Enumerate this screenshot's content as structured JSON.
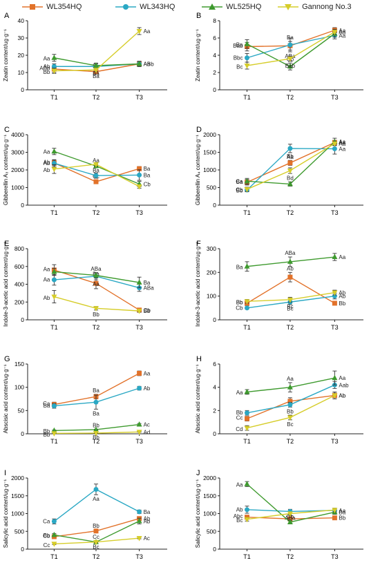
{
  "legend": [
    {
      "name": "WL354HQ",
      "color": "#E2722A",
      "marker": "square"
    },
    {
      "name": "WL343HQ",
      "color": "#2AA8C4",
      "marker": "circle"
    },
    {
      "name": "WL525HQ",
      "color": "#3E9A2E",
      "marker": "triangle"
    },
    {
      "name": "Gannong No.3",
      "color": "#D6CD2A",
      "marker": "triangle-down"
    }
  ],
  "chart_data": [
    {
      "panel": "A",
      "type": "line",
      "ylabel": "Zeatin content/ug·g⁻¹",
      "categories": [
        "T1",
        "T2",
        "T3"
      ],
      "ylim": [
        0,
        40
      ],
      "yticks": [
        0,
        10,
        20,
        30,
        40
      ],
      "series": [
        {
          "name": "WL354HQ",
          "values": [
            12,
            10.5,
            15
          ],
          "errors": [
            2,
            1,
            1.5
          ],
          "labels": [
            "ABb",
            "Ba",
            "ABb"
          ]
        },
        {
          "name": "WL343HQ",
          "values": [
            13.5,
            13.5,
            15
          ],
          "errors": [
            1.5,
            1.5,
            1.5
          ],
          "labels": [
            "Ab",
            "Ba",
            "Ab"
          ]
        },
        {
          "name": "WL525HQ",
          "values": [
            18.5,
            14,
            15
          ],
          "errors": [
            2,
            1.5,
            1.5
          ],
          "labels": [
            "Aa",
            "",
            ""
          ]
        },
        {
          "name": "Gannong No.3",
          "values": [
            11,
            11.5,
            34
          ],
          "errors": [
            1.5,
            1,
            2
          ],
          "labels": [
            "Bb",
            "Ba",
            "Aa"
          ]
        }
      ]
    },
    {
      "panel": "B",
      "type": "line",
      "ylabel": "Zeatin content/ug·g⁻¹",
      "categories": [
        "T1",
        "T2",
        "T3"
      ],
      "ylim": [
        0,
        8
      ],
      "yticks": [
        0,
        2,
        4,
        6,
        8
      ],
      "series": [
        {
          "name": "WL354HQ",
          "values": [
            5.0,
            5.1,
            6.9
          ],
          "errors": [
            0.5,
            0.5,
            0.3
          ],
          "labels": [
            "Bab",
            "Ba",
            "Aa"
          ]
        },
        {
          "name": "WL343HQ",
          "values": [
            3.7,
            5.2,
            6.3
          ],
          "errors": [
            0.5,
            0.8,
            0.4
          ],
          "labels": [
            "Bbc",
            "ABa",
            "Aa"
          ]
        },
        {
          "name": "WL525HQ",
          "values": [
            5.3,
            2.7,
            6.5
          ],
          "errors": [
            0.5,
            0.4,
            0.4
          ],
          "labels": [
            "Ba",
            "Cb",
            ""
          ]
        },
        {
          "name": "Gannong No.3",
          "values": [
            2.8,
            3.6,
            6.7
          ],
          "errors": [
            0.4,
            0.3,
            0.3
          ],
          "labels": [
            "Bc",
            "Bab",
            "Aa"
          ]
        }
      ]
    },
    {
      "panel": "C",
      "type": "line",
      "ylabel": "Gibberellin A₃ content/ug·g⁻¹",
      "categories": [
        "T1",
        "T2",
        "T3"
      ],
      "ylim": [
        0,
        4000
      ],
      "yticks": [
        0,
        1000,
        2000,
        3000,
        4000
      ],
      "series": [
        {
          "name": "WL354HQ",
          "values": [
            2400,
            1330,
            2070
          ],
          "errors": [
            150,
            80,
            120
          ],
          "labels": [
            "Ab",
            "Cc",
            "Ba"
          ]
        },
        {
          "name": "WL343HQ",
          "values": [
            2380,
            1680,
            1710
          ],
          "errors": [
            200,
            150,
            300
          ],
          "labels": [
            "Ab",
            "",
            "Ba"
          ]
        },
        {
          "name": "WL525HQ",
          "values": [
            3050,
            2220,
            1200
          ],
          "errors": [
            180,
            100,
            150
          ],
          "labels": [
            "Aa",
            "Aa",
            "Cb"
          ]
        },
        {
          "name": "Gannong No.3",
          "values": [
            2050,
            2320,
            1060
          ],
          "errors": [
            250,
            100,
            100
          ],
          "labels": [
            "Ab",
            "Ba",
            ""
          ]
        }
      ]
    },
    {
      "panel": "D",
      "type": "line",
      "ylabel": "Gibberellin A₄ content/ug·g⁻¹",
      "categories": [
        "T1",
        "T2",
        "T3"
      ],
      "ylim": [
        0,
        2000
      ],
      "yticks": [
        0,
        500,
        1000,
        1500,
        2000
      ],
      "series": [
        {
          "name": "WL354HQ",
          "values": [
            650,
            1200,
            1780
          ],
          "errors": [
            80,
            70,
            60
          ],
          "labels": [
            "Ca",
            "Bb",
            "Aa"
          ]
        },
        {
          "name": "WL343HQ",
          "values": [
            430,
            1610,
            1600
          ],
          "errors": [
            50,
            120,
            150
          ],
          "labels": [
            "Cb",
            "Aa",
            "Aa"
          ]
        },
        {
          "name": "WL525HQ",
          "values": [
            680,
            600,
            1800
          ],
          "errors": [
            80,
            60,
            100
          ],
          "labels": [
            "Ba",
            "Bd",
            "Aa"
          ]
        },
        {
          "name": "Gannong No.3",
          "values": [
            450,
            980,
            1750
          ],
          "errors": [
            60,
            80,
            60
          ],
          "labels": [
            "Bb",
            "",
            "Aa"
          ]
        }
      ]
    },
    {
      "panel": "E",
      "type": "line",
      "ylabel": "Indole-3-acetic acid content/ug·g⁻¹",
      "categories": [
        "T1",
        "T2",
        "T3"
      ],
      "ylim": [
        0,
        800
      ],
      "yticks": [
        0,
        200,
        400,
        600,
        800
      ],
      "series": [
        {
          "name": "WL354HQ",
          "values": [
            560,
            410,
            110
          ],
          "errors": [
            60,
            60,
            15
          ],
          "labels": [
            "Aa",
            "Ba",
            "Cb"
          ]
        },
        {
          "name": "WL343HQ",
          "values": [
            450,
            490,
            360
          ],
          "errors": [
            60,
            40,
            40
          ],
          "labels": [
            "Aa",
            "Aa",
            "ABa"
          ]
        },
        {
          "name": "WL525HQ",
          "values": [
            540,
            500,
            420
          ],
          "errors": [
            40,
            30,
            60
          ],
          "labels": [
            "",
            "ABa",
            "Ba"
          ]
        },
        {
          "name": "Gannong No.3",
          "values": [
            260,
            130,
            100
          ],
          "errors": [
            70,
            20,
            15
          ],
          "labels": [
            "Ab",
            "Bb",
            "Bb"
          ]
        }
      ]
    },
    {
      "panel": "F",
      "type": "line",
      "ylabel": "Indole-3-acetic acid content/ug·g⁻¹",
      "categories": [
        "T1",
        "T2",
        "T3"
      ],
      "ylim": [
        0,
        300
      ],
      "yticks": [
        0,
        100,
        200,
        300
      ],
      "series": [
        {
          "name": "WL354HQ",
          "values": [
            70,
            180,
            70
          ],
          "errors": [
            10,
            20,
            5
          ],
          "labels": [
            "Bb",
            "Ab",
            "Bb"
          ]
        },
        {
          "name": "WL343HQ",
          "values": [
            50,
            75,
            100
          ],
          "errors": [
            5,
            10,
            12
          ],
          "labels": [
            "Cb",
            "Bc",
            "Ab"
          ]
        },
        {
          "name": "WL525HQ",
          "values": [
            225,
            245,
            265
          ],
          "errors": [
            20,
            20,
            15
          ],
          "labels": [
            "Ba",
            "ABa",
            "Aa"
          ]
        },
        {
          "name": "Gannong No.3",
          "values": [
            78,
            85,
            115
          ],
          "errors": [
            8,
            10,
            10
          ],
          "labels": [
            "Bb",
            "Bc",
            "Ab"
          ]
        }
      ]
    },
    {
      "panel": "G",
      "type": "line",
      "ylabel": "Abscisic acid content/ug·g⁻¹",
      "categories": [
        "T1",
        "T2",
        "T3"
      ],
      "ylim": [
        0,
        150
      ],
      "yticks": [
        0,
        50,
        100,
        150
      ],
      "series": [
        {
          "name": "WL354HQ",
          "values": [
            63,
            80,
            130
          ],
          "errors": [
            5,
            5,
            5
          ],
          "labels": [
            "Ca",
            "Ba",
            "Aa"
          ]
        },
        {
          "name": "WL343HQ",
          "values": [
            60,
            68,
            98
          ],
          "errors": [
            5,
            15,
            4
          ],
          "labels": [
            "Ba",
            "Ba",
            "Ab"
          ]
        },
        {
          "name": "WL525HQ",
          "values": [
            7,
            9,
            20
          ],
          "errors": [
            1,
            1,
            2
          ],
          "labels": [
            "Bb",
            "Bb",
            "Ac"
          ]
        },
        {
          "name": "Gannong No.3",
          "values": [
            1,
            1.5,
            4
          ],
          "errors": [
            0.3,
            0.3,
            0.5
          ],
          "labels": [
            "Bb",
            "Bb",
            "Ad"
          ]
        }
      ]
    },
    {
      "panel": "H",
      "type": "line",
      "ylabel": "Abscisic acid content/ug·g⁻¹",
      "categories": [
        "T1",
        "T2",
        "T3"
      ],
      "ylim": [
        0,
        6
      ],
      "yticks": [
        0,
        2,
        4,
        6
      ],
      "series": [
        {
          "name": "WL354HQ",
          "values": [
            1.3,
            2.8,
            3.3
          ],
          "errors": [
            0.2,
            0.3,
            0.2
          ],
          "labels": [
            "Cc",
            "",
            "Ab"
          ]
        },
        {
          "name": "WL343HQ",
          "values": [
            1.8,
            2.5,
            4.2
          ],
          "errors": [
            0.2,
            0.2,
            0.3
          ],
          "labels": [
            "Bb",
            "Bb",
            "Aab"
          ]
        },
        {
          "name": "WL525HQ",
          "values": [
            3.6,
            4.0,
            4.8
          ],
          "errors": [
            0.2,
            0.4,
            0.6
          ],
          "labels": [
            "Aa",
            "Aa",
            "Aa"
          ]
        },
        {
          "name": "Gannong No.3",
          "values": [
            0.5,
            1.4,
            3.3
          ],
          "errors": [
            0.2,
            0.2,
            0.3
          ],
          "labels": [
            "Cd",
            "Bc",
            "Ab"
          ]
        }
      ]
    },
    {
      "panel": "I",
      "type": "line",
      "ylabel": "Salicylic acid content/ug·g⁻¹",
      "categories": [
        "T1",
        "T2",
        "T3"
      ],
      "ylim": [
        0,
        2000
      ],
      "yticks": [
        0,
        500,
        1000,
        1500,
        2000
      ],
      "series": [
        {
          "name": "WL354HQ",
          "values": [
            350,
            510,
            860
          ],
          "errors": [
            30,
            30,
            40
          ],
          "labels": [
            "Cb",
            "Bb",
            "Ab"
          ]
        },
        {
          "name": "WL343HQ",
          "values": [
            780,
            1680,
            1050
          ],
          "errors": [
            70,
            150,
            50
          ],
          "labels": [
            "Ca",
            "Aa",
            "Ba"
          ]
        },
        {
          "name": "WL525HQ",
          "values": [
            400,
            200,
            790
          ],
          "errors": [
            40,
            30,
            80
          ],
          "labels": [
            "Bb",
            "Cc",
            "Ab"
          ]
        },
        {
          "name": "Gannong No.3",
          "values": [
            150,
            200,
            310
          ],
          "errors": [
            20,
            20,
            20
          ],
          "labels": [
            "Cc",
            "Bc",
            "Ac"
          ]
        }
      ]
    },
    {
      "panel": "J",
      "type": "line",
      "ylabel": "Salicylic acid content/ug·g⁻¹",
      "categories": [
        "T1",
        "T2",
        "T3"
      ],
      "ylim": [
        0,
        2000
      ],
      "yticks": [
        0,
        500,
        1000,
        1500,
        2000
      ],
      "series": [
        {
          "name": "WL354HQ",
          "values": [
            900,
            850,
            880
          ],
          "errors": [
            50,
            60,
            50
          ],
          "labels": [
            "Abc",
            "",
            "Bb"
          ]
        },
        {
          "name": "WL343HQ",
          "values": [
            1110,
            1060,
            1090
          ],
          "errors": [
            100,
            60,
            60
          ],
          "labels": [
            "Ab",
            "ABa",
            "Aa"
          ]
        },
        {
          "name": "WL525HQ",
          "values": [
            1830,
            760,
            1040
          ],
          "errors": [
            70,
            50,
            60
          ],
          "labels": [
            "Aa",
            "Cb",
            "Ba"
          ]
        },
        {
          "name": "Gannong No.3",
          "values": [
            840,
            1000,
            1100
          ],
          "errors": [
            50,
            50,
            50
          ],
          "labels": [
            "Bc",
            "",
            ""
          ]
        }
      ]
    }
  ]
}
